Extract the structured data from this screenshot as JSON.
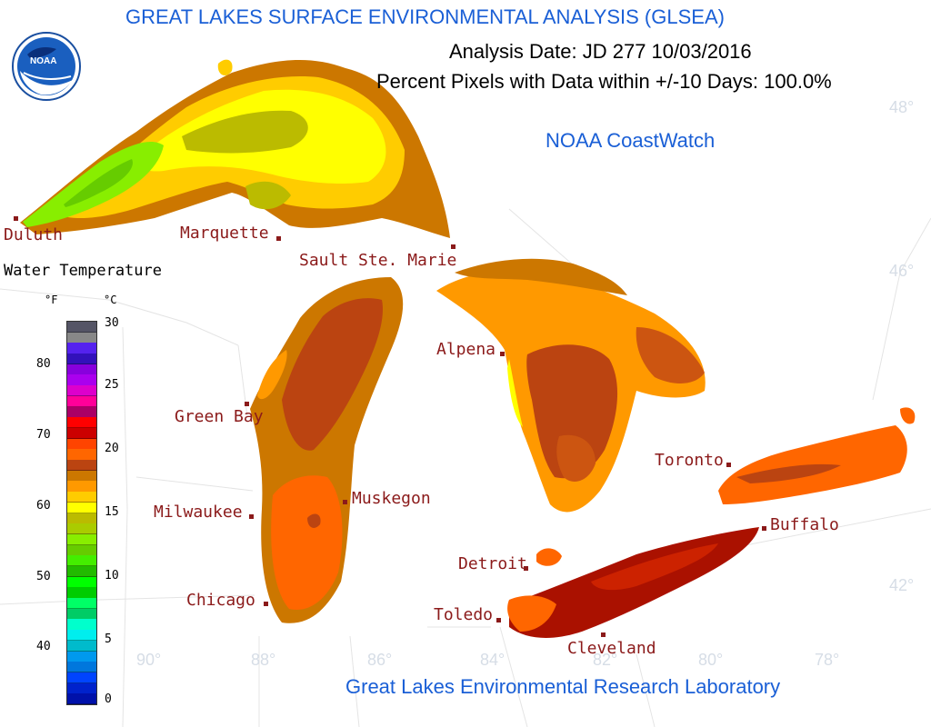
{
  "header": {
    "title": "GREAT LAKES SURFACE ENVIRONMENTAL ANALYSIS (GLSEA)",
    "analysis_date": "Analysis Date:  JD 277 10/03/2016",
    "coverage": "Percent Pixels with Data within +/-10 Days: 100.0%",
    "provider": "NOAA CoastWatch",
    "footer": "Great Lakes Environmental Research Laboratory",
    "logo_text": "NOAA"
  },
  "cities": [
    {
      "name": "Duluth"
    },
    {
      "name": "Marquette"
    },
    {
      "name": "Sault Ste. Marie"
    },
    {
      "name": "Alpena"
    },
    {
      "name": "Green Bay"
    },
    {
      "name": "Milwaukee"
    },
    {
      "name": "Muskegon"
    },
    {
      "name": "Chicago"
    },
    {
      "name": "Detroit"
    },
    {
      "name": "Toledo"
    },
    {
      "name": "Cleveland"
    },
    {
      "name": "Toronto"
    },
    {
      "name": "Buffalo"
    }
  ],
  "graticule": {
    "longitudes": [
      "90°",
      "88°",
      "86°",
      "84°",
      "82°",
      "80°",
      "78°"
    ],
    "latitudes": [
      "48°",
      "46°",
      "42°"
    ]
  },
  "legend": {
    "title": "Water Temperature",
    "unit_f": "°F",
    "unit_c": "°C",
    "f_ticks": [
      "80",
      "70",
      "60",
      "50",
      "40"
    ],
    "c_ticks": [
      "30",
      "25",
      "20",
      "15",
      "10",
      "5",
      "0"
    ],
    "colors": [
      "#555566",
      "#888888",
      "#5522ee",
      "#3311bb",
      "#8800dd",
      "#aa00ee",
      "#dd00cc",
      "#ff0099",
      "#aa0066",
      "#ff0000",
      "#cc0000",
      "#ff4400",
      "#ff6600",
      "#bb4411",
      "#cc7700",
      "#ff9900",
      "#ffcc00",
      "#ffff00",
      "#bbbb00",
      "#aacc00",
      "#88ee00",
      "#66cc00",
      "#44ee00",
      "#22bb00",
      "#00ff00",
      "#00cc00",
      "#00ff66",
      "#00cc66",
      "#00ffcc",
      "#00eeee",
      "#00bbcc",
      "#0099ee",
      "#0077dd",
      "#0044ff",
      "#0022cc",
      "#0011aa"
    ]
  }
}
